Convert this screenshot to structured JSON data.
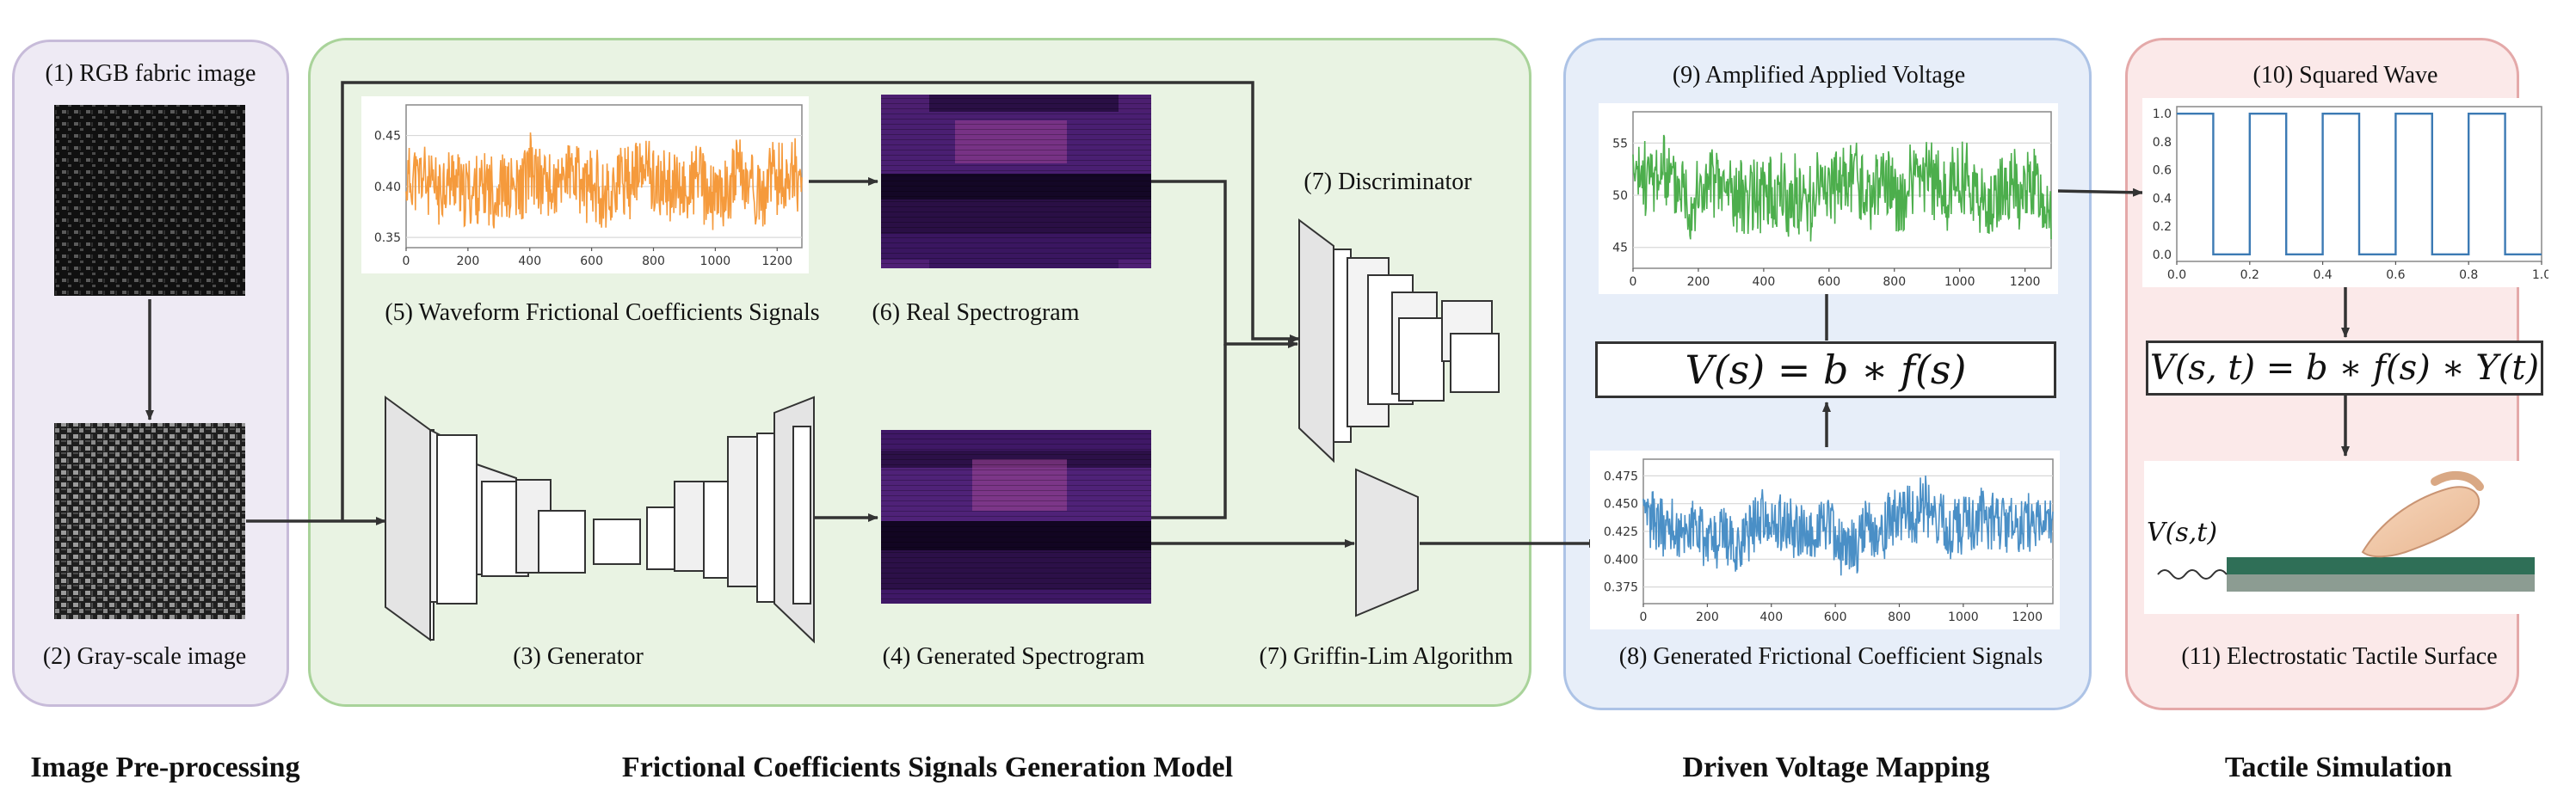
{
  "colors": {
    "panel_pre": "#eeeaf4",
    "panel_pre_border": "#c7bbd9",
    "panel_gen": "#e9f3e3",
    "panel_gen_border": "#a9d39a",
    "panel_volt": "#e7eef9",
    "panel_volt_border": "#adc3e6",
    "panel_tact": "#fbe9e9",
    "panel_tact_border": "#e4a9a9",
    "orange": "#f59a3c",
    "green": "#4cae4c",
    "blue": "#4a8fc6",
    "square": "#3c7ab4"
  },
  "labels": {
    "rgb_image": "(1) RGB fabric image",
    "gray_image": "(2) Gray-scale image",
    "generator": "(3) Generator",
    "generated_spectrogram": "(4) Generated Spectrogram",
    "waveform_signals": "(5) Waveform Frictional Coefficients Signals",
    "real_spectrogram": "(6) Real Spectrogram",
    "discriminator": "(7) Discriminator",
    "griffin_lim": "(7) Griffin-Lim Algorithm",
    "generated_signals": "(8) Generated Frictional Coefficient Signals",
    "amplified_voltage": "(9) Amplified Applied Voltage",
    "squared_wave": "(10) Squared Wave",
    "tactile_surface": "(11) Electrostatic Tactile Surface",
    "vst_inline": "V(s,t)"
  },
  "formulas": {
    "voltage": "V(s) = b ∗ f(s)",
    "voltage_time": "V(s, t) = b ∗ f(s) ∗ Y(t)"
  },
  "sections": {
    "pre": "Image Pre-processing",
    "gen": "Frictional Coefficients Signals Generation Model",
    "volt": "Driven Voltage Mapping",
    "tact": "Tactile Simulation"
  },
  "chart_data": [
    {
      "id": "waveform",
      "type": "line",
      "xlim": [
        0,
        1280
      ],
      "ylim": [
        0.34,
        0.48
      ],
      "xticks": [
        0,
        200,
        400,
        600,
        800,
        1000,
        1200
      ],
      "yticks": [
        0.35,
        0.4,
        0.45
      ],
      "ytick_labels": [
        "0.35",
        "0.40",
        "0.45"
      ],
      "mean": 0.405,
      "amplitude": 0.028,
      "clip": [
        0.352,
        0.472
      ],
      "seed": 11,
      "color": "#f59a3c"
    },
    {
      "id": "amplified_voltage",
      "type": "line",
      "xlim": [
        0,
        1280
      ],
      "ylim": [
        43,
        58
      ],
      "xticks": [
        0,
        200,
        400,
        600,
        800,
        1000,
        1200
      ],
      "yticks": [
        45,
        50,
        55
      ],
      "ytick_labels": [
        "45",
        "50",
        "55"
      ],
      "mean": 51,
      "amplitude": 3.0,
      "clip": [
        44.2,
        57.2
      ],
      "seed": 23,
      "color": "#4cae4c"
    },
    {
      "id": "generated_signals",
      "type": "line",
      "xlim": [
        0,
        1280
      ],
      "ylim": [
        0.36,
        0.49
      ],
      "xticks": [
        0,
        200,
        400,
        600,
        800,
        1000,
        1200
      ],
      "yticks": [
        0.375,
        0.4,
        0.425,
        0.45,
        0.475
      ],
      "ytick_labels": [
        "0.375",
        "0.400",
        "0.425",
        "0.450",
        "0.475"
      ],
      "mean": 0.428,
      "amplitude": 0.022,
      "clip": [
        0.368,
        0.484
      ],
      "seed": 37,
      "color": "#4a8fc6"
    },
    {
      "id": "squared_wave",
      "type": "line",
      "xlim": [
        0,
        1.0
      ],
      "ylim": [
        -0.05,
        1.05
      ],
      "xticks": [
        0.0,
        0.2,
        0.4,
        0.6,
        0.8,
        1.0
      ],
      "xtick_labels": [
        "0.0",
        "0.2",
        "0.4",
        "0.6",
        "0.8",
        "1.0"
      ],
      "yticks": [
        0.0,
        0.2,
        0.4,
        0.6,
        0.8,
        1.0
      ],
      "ytick_labels": [
        "0.0",
        "0.2",
        "0.4",
        "0.6",
        "0.8",
        "1.0"
      ],
      "x": [
        0.0,
        0.1,
        0.1,
        0.2,
        0.2,
        0.3,
        0.3,
        0.4,
        0.4,
        0.5,
        0.5,
        0.6,
        0.6,
        0.7,
        0.7,
        0.8,
        0.8,
        0.9,
        0.9,
        1.0
      ],
      "y": [
        1,
        1,
        0,
        0,
        1,
        1,
        0,
        0,
        1,
        1,
        0,
        0,
        1,
        1,
        0,
        0,
        1,
        1,
        0,
        0
      ],
      "color": "#3c7ab4"
    }
  ]
}
